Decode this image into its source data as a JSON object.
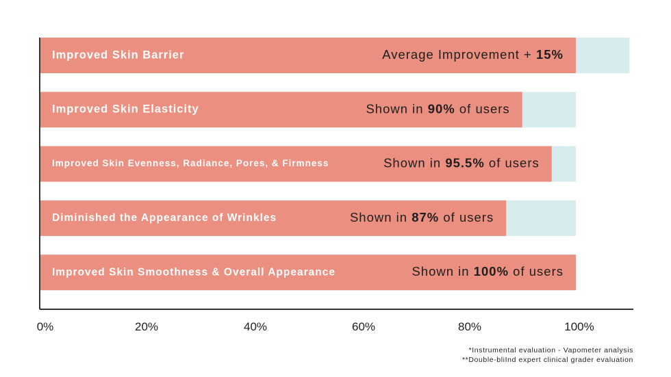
{
  "chart_data": {
    "type": "bar",
    "orientation": "horizontal",
    "x_tick_labels": [
      "0%",
      "20%",
      "40%",
      "60%",
      "80%",
      "100%"
    ],
    "xlim": [
      0,
      110
    ],
    "grid": false,
    "legend": "none",
    "colors": {
      "bar": "#EB9080",
      "track": "#D8ECEE",
      "axis": "#333333"
    },
    "bars": [
      {
        "category": "Improved Skin Barrier",
        "value": 100,
        "track": 110,
        "label_parts": [
          {
            "text": "Average Improvement + ",
            "bold": false
          },
          {
            "text": "15%",
            "bold": true
          }
        ]
      },
      {
        "category": "Improved Skin Elasticity",
        "value": 90,
        "track": 100,
        "label_parts": [
          {
            "text": "Shown in ",
            "bold": false
          },
          {
            "text": "90%",
            "bold": true
          },
          {
            "text": " of users",
            "bold": false
          }
        ]
      },
      {
        "category": "Improved Skin Evenness, Radiance, Pores, & Firmness",
        "value": 95.5,
        "track": 100,
        "label_parts": [
          {
            "text": "Shown in ",
            "bold": false
          },
          {
            "text": "95.5%",
            "bold": true
          },
          {
            "text": " of users",
            "bold": false
          }
        ]
      },
      {
        "category": "Diminished the Appearance of Wrinkles",
        "value": 87,
        "track": 100,
        "label_parts": [
          {
            "text": "Shown in ",
            "bold": false
          },
          {
            "text": "87%",
            "bold": true
          },
          {
            "text": " of users",
            "bold": false
          }
        ]
      },
      {
        "category": "Improved Skin Smoothness & Overall Appearance",
        "value": 100,
        "track": 100,
        "label_parts": [
          {
            "text": "Shown in ",
            "bold": false
          },
          {
            "text": "100%",
            "bold": true
          },
          {
            "text": " of users",
            "bold": false
          }
        ]
      }
    ]
  },
  "footnotes": [
    "*Instrumental evaluation - Vapometer analysis",
    "**Double-bliInd expert clinical grader evaluation"
  ]
}
